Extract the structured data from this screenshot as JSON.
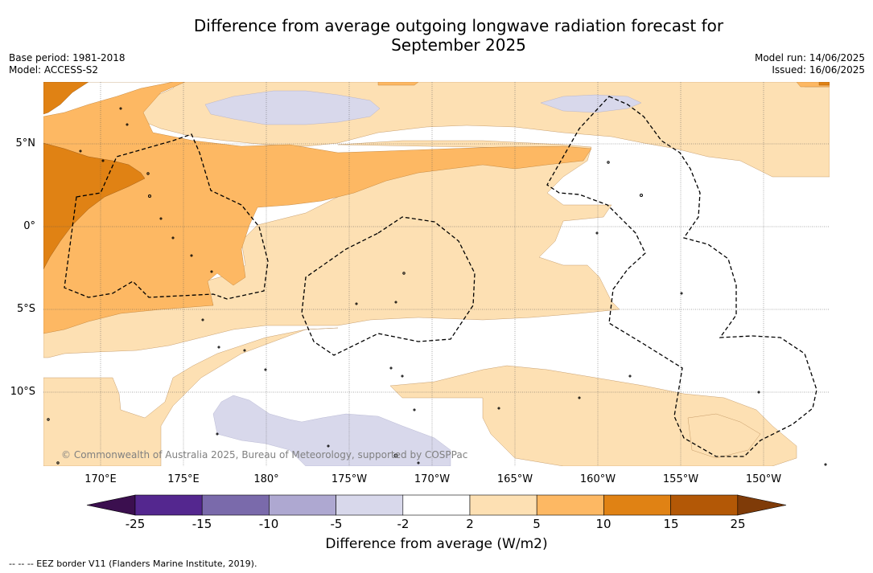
{
  "title_line1": "Difference from average outgoing longwave radiation forecast for",
  "title_line2": "September 2025",
  "left_meta": {
    "base_period": "Base period: 1981-2018",
    "model": "Model: ACCESS-S2"
  },
  "right_meta": {
    "model_run": "Model run: 14/06/2025",
    "issued": "Issued: 16/06/2025"
  },
  "latitude_labels": [
    "5°N",
    "0°",
    "5°S",
    "10°S"
  ],
  "longitude_labels": [
    "170°E",
    "175°E",
    "180°",
    "175°W",
    "170°W",
    "165°W",
    "160°W",
    "155°W",
    "150°W"
  ],
  "copyright": "© Commonwealth of Australia 2025, Bureau of Meteorology, supported by COSPPac",
  "colorbar": {
    "title": "Difference from average (W/m2)",
    "tick_labels": [
      "-25",
      "-15",
      "-10",
      "-5",
      "-2",
      "2",
      "5",
      "10",
      "15",
      "25"
    ],
    "colors": [
      "#3b0f4f",
      "#54278f",
      "#7a6aab",
      "#aea8d1",
      "#d8d8eb",
      "#ffffff",
      "#fde0b3",
      "#fdb863",
      "#e08214",
      "#b35806",
      "#7f3b08"
    ]
  },
  "footer": "--  --  -- EEZ border V11 (Flanders Marine Institute, 2019)."
}
